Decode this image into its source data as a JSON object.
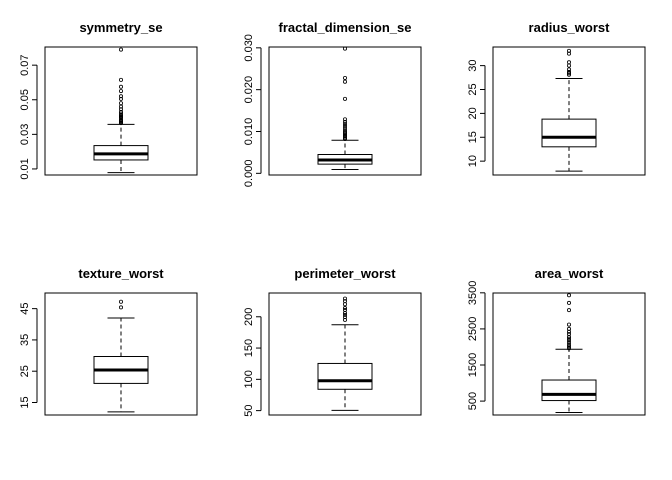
{
  "chart_data": [
    {
      "type": "boxplot",
      "title": "symmetry_se",
      "ylim": [
        0.0065,
        0.0805
      ],
      "ticks": [
        0.01,
        0.03,
        0.05,
        0.07
      ],
      "tick_labels": [
        "0.01",
        "0.03",
        "0.05",
        "0.07"
      ],
      "box": {
        "whisker_low": 0.0079,
        "q1": 0.0152,
        "median": 0.0187,
        "q3": 0.0235,
        "whisker_high": 0.0358
      },
      "outliers": [
        0.0365,
        0.037,
        0.0375,
        0.038,
        0.0385,
        0.0395,
        0.04,
        0.0405,
        0.041,
        0.042,
        0.043,
        0.0445,
        0.046,
        0.048,
        0.0505,
        0.052,
        0.055,
        0.0575,
        0.0615,
        0.079
      ]
    },
    {
      "type": "boxplot",
      "title": "fractal_dimension_se",
      "ylim": [
        -0.0004,
        0.0302
      ],
      "ticks": [
        0.0,
        0.01,
        0.02,
        0.03
      ],
      "tick_labels": [
        "0.000",
        "0.010",
        "0.020",
        "0.030"
      ],
      "box": {
        "whisker_low": 0.0009,
        "q1": 0.0022,
        "median": 0.0032,
        "q3": 0.0045,
        "whisker_high": 0.0079
      },
      "outliers": [
        0.0082,
        0.0085,
        0.0088,
        0.009,
        0.0093,
        0.0096,
        0.0099,
        0.0103,
        0.0108,
        0.0113,
        0.0118,
        0.0123,
        0.0129,
        0.0178,
        0.0219,
        0.0228,
        0.0298
      ]
    },
    {
      "type": "boxplot",
      "title": "radius_worst",
      "ylim": [
        7.1,
        33.9
      ],
      "ticks": [
        10,
        15,
        20,
        25,
        30
      ],
      "tick_labels": [
        "10",
        "15",
        "20",
        "25",
        "30"
      ],
      "box": {
        "whisker_low": 7.9,
        "q1": 13.0,
        "median": 15.0,
        "q3": 18.8,
        "whisker_high": 27.3
      },
      "outliers": [
        28.1,
        28.4,
        28.7,
        29.2,
        30.0,
        30.7,
        32.5,
        33.1
      ]
    },
    {
      "type": "boxplot",
      "title": "texture_worst",
      "ylim": [
        11.0,
        50.0
      ],
      "ticks": [
        15,
        25,
        35,
        45
      ],
      "tick_labels": [
        "15",
        "25",
        "35",
        "45"
      ],
      "box": {
        "whisker_low": 12.0,
        "q1": 21.1,
        "median": 25.4,
        "q3": 29.7,
        "whisker_high": 42.0
      },
      "outliers": [
        45.4,
        47.2
      ]
    },
    {
      "type": "boxplot",
      "title": "perimeter_worst",
      "ylim": [
        43.0,
        238.0
      ],
      "ticks": [
        50,
        100,
        150,
        200
      ],
      "tick_labels": [
        "50",
        "100",
        "150",
        "200"
      ],
      "box": {
        "whisker_low": 50.4,
        "q1": 84.1,
        "median": 97.7,
        "q3": 125.4,
        "whisker_high": 187.3
      },
      "outliers": [
        195.0,
        199.5,
        203.0,
        206.0,
        211.0,
        214.0,
        220.0,
        225.0,
        229.0
      ]
    },
    {
      "type": "boxplot",
      "title": "area_worst",
      "ylim": [
        115.0,
        3495.0
      ],
      "ticks": [
        500,
        1500,
        2500,
        3500
      ],
      "tick_labels": [
        "500",
        "1500",
        "2500",
        "3500"
      ],
      "box": {
        "whisker_low": 185.0,
        "q1": 515.0,
        "median": 686.0,
        "q3": 1084.0,
        "whisker_high": 1937.0
      },
      "outliers": [
        1960,
        2010,
        2060,
        2120,
        2180,
        2230,
        2280,
        2360,
        2420,
        2500,
        2620,
        3020,
        3220,
        3432
      ]
    }
  ]
}
